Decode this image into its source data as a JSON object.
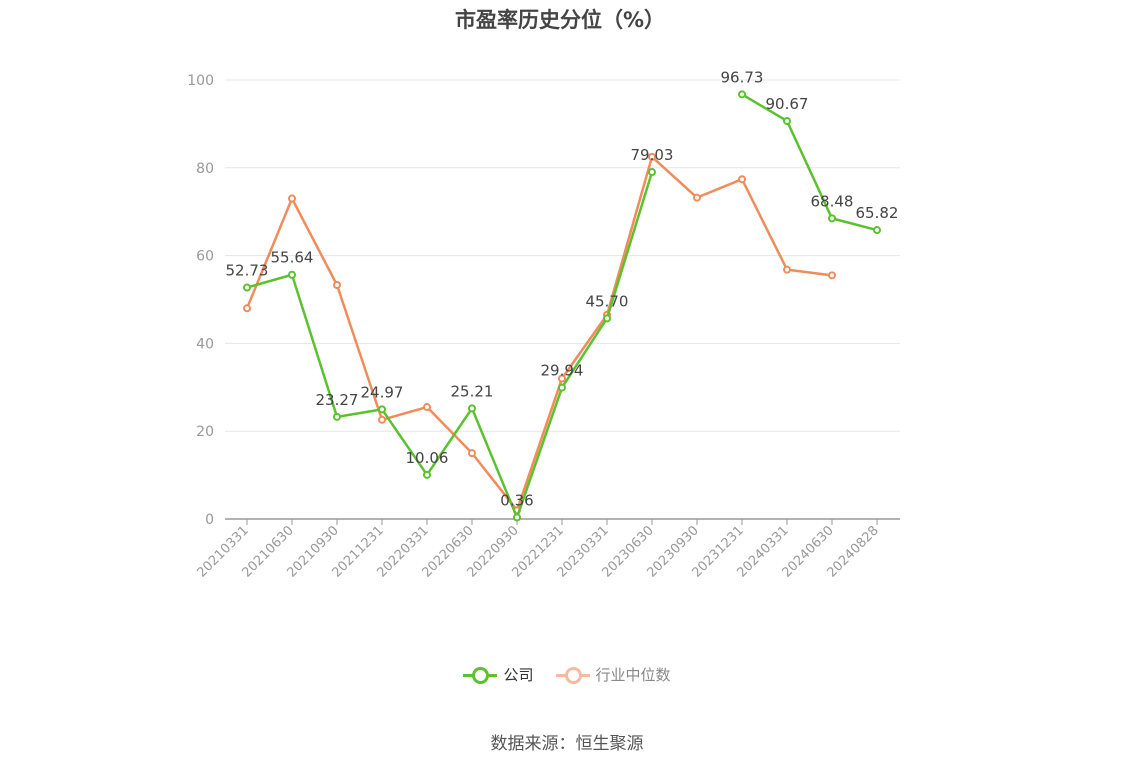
{
  "chart_data": {
    "type": "line",
    "title": "市盈率历史分位（%）",
    "categories": [
      "20210331",
      "20210630",
      "20210930",
      "20211231",
      "20220331",
      "20220630",
      "20220930",
      "20221231",
      "20230331",
      "20230630",
      "20230930",
      "20231231",
      "20240331",
      "20240630",
      "20240828"
    ],
    "series": [
      {
        "name": "公司",
        "color": "#5ac12f",
        "show_labels": true,
        "values": [
          52.73,
          55.64,
          23.27,
          24.97,
          10.06,
          25.21,
          0.36,
          29.94,
          45.7,
          79.03,
          null,
          96.73,
          90.67,
          68.48,
          65.82
        ]
      },
      {
        "name": "行业中位数",
        "color": "#f28b5b",
        "legend_color": "#f6b9a3",
        "show_labels": false,
        "values": [
          48.0,
          73.0,
          53.3,
          22.6,
          25.5,
          15.0,
          2.0,
          32.0,
          46.5,
          82.5,
          73.2,
          77.4,
          56.8,
          55.5,
          null
        ]
      }
    ],
    "yticks": [
      0,
      20,
      40,
      60,
      80,
      100
    ],
    "ylim": [
      0,
      100
    ],
    "grid": true,
    "legend_position": "bottom"
  },
  "source": "数据来源：恒生聚源"
}
